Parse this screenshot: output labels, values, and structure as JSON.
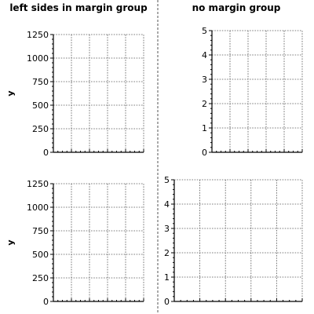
{
  "columns": {
    "left_title": "left sides in margin group",
    "right_title": "no margin group"
  },
  "chart_data": [
    {
      "type": "line",
      "position": "top-left",
      "title": "",
      "xlabel": "",
      "ylabel": "y",
      "ylim": [
        0,
        1250
      ],
      "yticks": [
        "0",
        "250",
        "500",
        "750",
        "1000",
        "1250"
      ],
      "series": [],
      "grid": true
    },
    {
      "type": "line",
      "position": "top-right",
      "title": "",
      "xlabel": "",
      "ylabel": "",
      "ylim": [
        0,
        5
      ],
      "yticks": [
        "0",
        "1",
        "2",
        "3",
        "4",
        "5"
      ],
      "series": [],
      "grid": true
    },
    {
      "type": "line",
      "position": "bottom-left",
      "title": "",
      "xlabel": "",
      "ylabel": "y",
      "ylim": [
        0,
        1250
      ],
      "yticks": [
        "0",
        "250",
        "500",
        "750",
        "1000",
        "1250"
      ],
      "series": [],
      "grid": true
    },
    {
      "type": "line",
      "position": "bottom-right",
      "title": "",
      "xlabel": "",
      "ylabel": "",
      "ylim": [
        0,
        5
      ],
      "yticks": [
        "0",
        "1",
        "2",
        "3",
        "4",
        "5"
      ],
      "series": [],
      "grid": true
    }
  ]
}
